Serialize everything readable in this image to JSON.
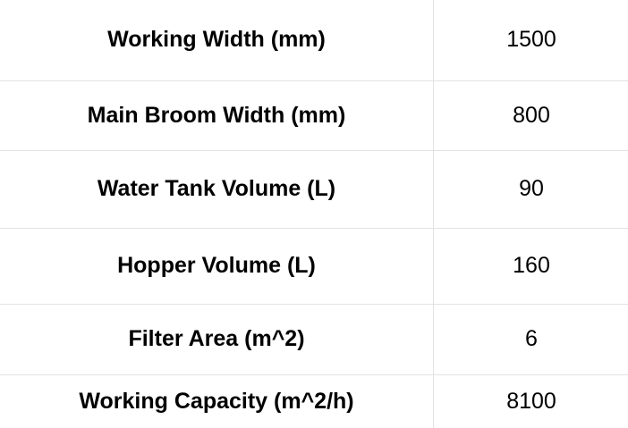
{
  "specs": {
    "rows": [
      {
        "label": "Working Width (mm)",
        "value": "1500"
      },
      {
        "label": "Main Broom Width (mm)",
        "value": "800"
      },
      {
        "label": "Water Tank Volume (L)",
        "value": "90"
      },
      {
        "label": "Hopper Volume (L)",
        "value": "160"
      },
      {
        "label": "Filter Area (m^2)",
        "value": "6"
      },
      {
        "label": "Working Capacity (m^2/h)",
        "value": "8100"
      }
    ]
  },
  "colors": {
    "text": "#000000",
    "border": "#e3e3e3",
    "background": "#ffffff"
  }
}
